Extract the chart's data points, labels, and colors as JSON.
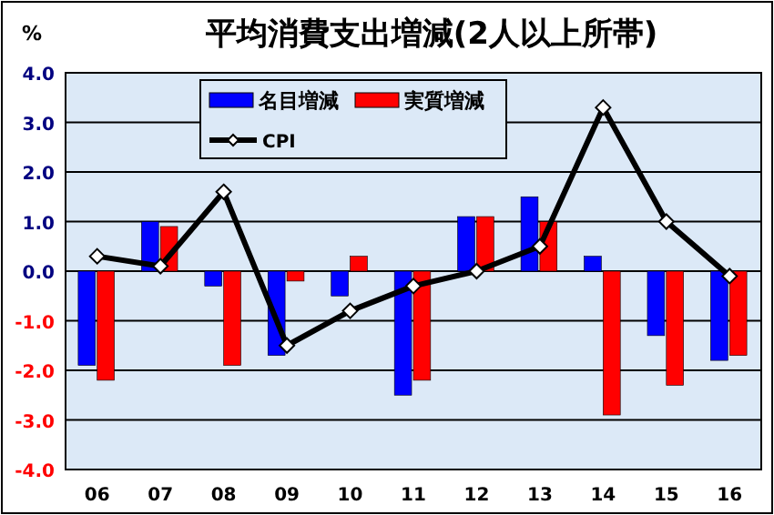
{
  "chart_data": {
    "type": "bar",
    "title": "平均消費支出増減(2人以上所帯)",
    "ylabel": "%",
    "categories": [
      "06",
      "07",
      "08",
      "09",
      "10",
      "11",
      "12",
      "13",
      "14",
      "15",
      "16"
    ],
    "series": [
      {
        "name": "名目増減",
        "color": "#0000ff",
        "values": [
          -1.9,
          1.0,
          -0.3,
          -1.7,
          -0.5,
          -2.5,
          1.1,
          1.5,
          0.3,
          -1.3,
          -1.8
        ]
      },
      {
        "name": "実質増減",
        "color": "#ff0000",
        "values": [
          -2.2,
          0.9,
          -1.9,
          -0.2,
          0.3,
          -2.2,
          1.1,
          1.0,
          -2.9,
          -2.3,
          -1.7
        ]
      },
      {
        "name": "CPI",
        "type": "line",
        "color": "#000000",
        "marker": "diamond",
        "values": [
          0.3,
          0.1,
          1.6,
          -1.5,
          -0.8,
          -0.3,
          0.0,
          0.5,
          3.3,
          1.0,
          -0.1
        ]
      }
    ],
    "ylim": [
      -4,
      4
    ],
    "yticks": [
      {
        "value": -4,
        "label": "-4.0"
      },
      {
        "value": -3,
        "label": "-3.0"
      },
      {
        "value": -2,
        "label": "-2.0"
      },
      {
        "value": -1,
        "label": "-1.0"
      },
      {
        "value": 0,
        "label": "0.0"
      },
      {
        "value": 1,
        "label": "1.0"
      },
      {
        "value": 2,
        "label": "2.0"
      },
      {
        "value": 3,
        "label": "3.0"
      },
      {
        "value": 4,
        "label": "4.0"
      }
    ],
    "grid": "y",
    "legend": "top"
  }
}
